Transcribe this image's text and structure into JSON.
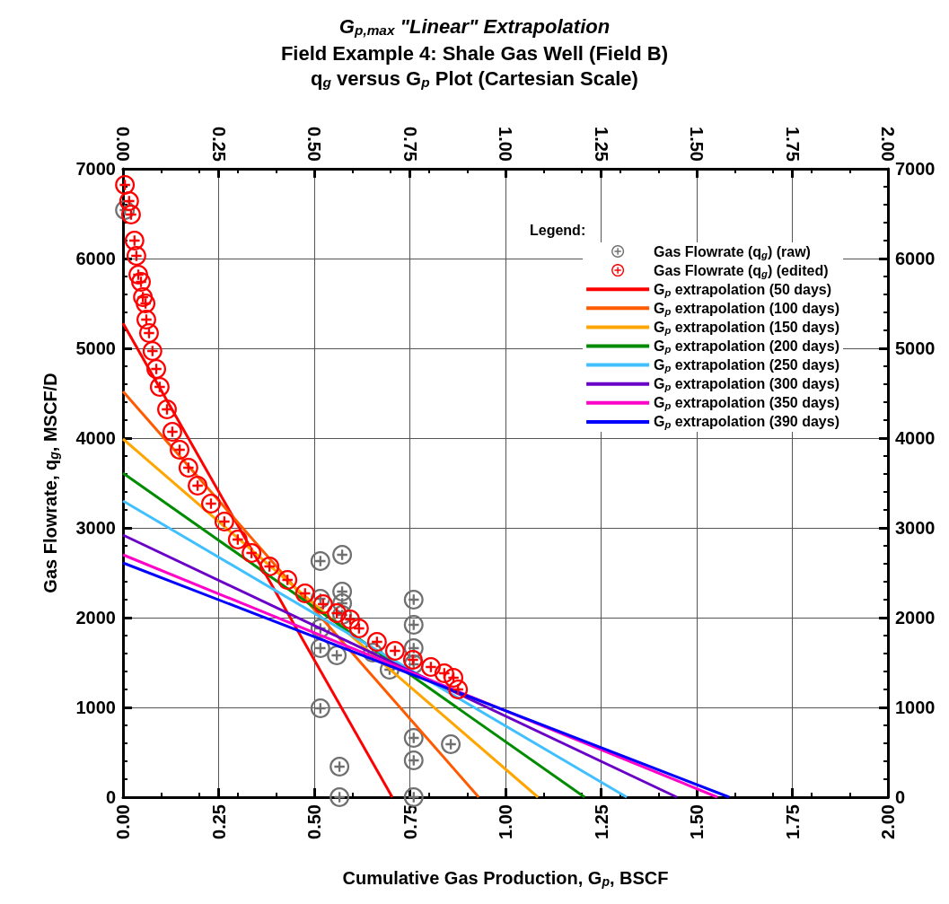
{
  "chart_data": {
    "type": "scatter",
    "title": "G$_{p,max}$ \"Linear\" Extrapolation",
    "subtitle": "Field Example 4: Shale Gas Well (Field B)\nq$_{g}$ versus G$_{p}$ Plot (Cartesian Scale)",
    "xlabel": "Cumulative Gas Production, G$_{p}$, BSCF",
    "ylabel": "Gas Flowrate, q$_{g}$, MSCF/D",
    "legend_title": "Legend:",
    "legend": "top right",
    "grid": true,
    "marker": "circle",
    "xlim": [
      0,
      2
    ],
    "xticks": [
      {
        "value": 0,
        "label": "0.00"
      },
      {
        "value": 0.25,
        "label": "0.25"
      },
      {
        "value": 0.5,
        "label": "0.50"
      },
      {
        "value": 0.75,
        "label": "0.75"
      },
      {
        "value": 1,
        "label": "1.00"
      },
      {
        "value": 1.25,
        "label": "1.25"
      },
      {
        "value": 1.5,
        "label": "1.50"
      },
      {
        "value": 1.75,
        "label": "1.75"
      },
      {
        "value": 2,
        "label": "2.00"
      }
    ],
    "x2lim": [
      0,
      2
    ],
    "x2ticks": [
      {
        "value": 0,
        "label": "0.00"
      },
      {
        "value": 0.25,
        "label": "0.25"
      },
      {
        "value": 0.5,
        "label": "0.50"
      },
      {
        "value": 0.75,
        "label": "0.75"
      },
      {
        "value": 1,
        "label": "1.00"
      },
      {
        "value": 1.25,
        "label": "1.25"
      },
      {
        "value": 1.5,
        "label": "1.50"
      },
      {
        "value": 1.75,
        "label": "1.75"
      },
      {
        "value": 2,
        "label": "2.00"
      }
    ],
    "ylim": [
      0,
      7000
    ],
    "yticks": [
      0,
      1000,
      2000,
      3000,
      4000,
      5000,
      6000,
      7000
    ],
    "y2lim": [
      0,
      7000
    ],
    "y2ticks": [
      0,
      1000,
      2000,
      3000,
      4000,
      5000,
      6000,
      7000
    ],
    "series": [
      {
        "name": "Gas Flowrate (q$_{g}$) (raw)",
        "color": "#707070",
        "x": [
          0.005,
          0.516,
          0.573,
          0.516,
          0.573,
          0.573,
          0.573,
          0.516,
          0.516,
          0.559,
          0.516,
          0.566,
          0.566,
          0.76,
          0.76,
          0.76,
          0.76,
          0.697,
          0.76,
          0.76,
          0.76,
          0.857,
          0.653
        ],
        "values": [
          6540,
          2630,
          2700,
          2210,
          2290,
          2160,
          2030,
          1880,
          1660,
          1580,
          990,
          340,
          0,
          2200,
          1920,
          1660,
          1480,
          1420,
          660,
          410,
          0,
          590,
          1610
        ]
      },
      {
        "name": "Gas Flowrate (q$_{g}$) (edited)",
        "color": "#ff0000",
        "x": [
          0.005,
          0.016,
          0.021,
          0.03,
          0.035,
          0.04,
          0.047,
          0.052,
          0.059,
          0.061,
          0.068,
          0.077,
          0.087,
          0.096,
          0.115,
          0.129,
          0.148,
          0.171,
          0.195,
          0.23,
          0.265,
          0.3,
          0.336,
          0.383,
          0.43,
          0.476,
          0.523,
          0.559,
          0.594,
          0.617,
          0.664,
          0.711,
          0.758,
          0.805,
          0.84,
          0.864,
          0.876
        ],
        "values": [
          6820,
          6640,
          6490,
          6200,
          6030,
          5820,
          5740,
          5570,
          5500,
          5320,
          5170,
          4970,
          4770,
          4570,
          4320,
          4070,
          3870,
          3670,
          3470,
          3270,
          3070,
          2870,
          2720,
          2570,
          2420,
          2270,
          2150,
          2050,
          1980,
          1880,
          1730,
          1630,
          1530,
          1450,
          1380,
          1330,
          1200
        ]
      },
      {
        "name": "G$_{p}$ extrapolation (50 days)",
        "type": "line",
        "marker": "none",
        "color": "#ff0000",
        "x": [
          0,
          0.704
        ],
        "values": [
          5280,
          0
        ]
      },
      {
        "name": "G$_{p}$ extrapolation (100 days)",
        "type": "line",
        "marker": "none",
        "color": "#ff5a00",
        "x": [
          0,
          0.93
        ],
        "values": [
          4520,
          0
        ]
      },
      {
        "name": "G$_{p}$ extrapolation (150 days)",
        "type": "line",
        "marker": "none",
        "color": "#ffa500",
        "x": [
          0,
          1.085
        ],
        "values": [
          3990,
          0
        ]
      },
      {
        "name": "G$_{p}$ extrapolation (200 days)",
        "type": "line",
        "marker": "none",
        "color": "#008c00",
        "x": [
          0,
          1.207
        ],
        "values": [
          3610,
          0
        ]
      },
      {
        "name": "G$_{p}$ extrapolation (250 days)",
        "type": "line",
        "marker": "none",
        "color": "#40c0ff",
        "x": [
          0,
          1.317
        ],
        "values": [
          3300,
          0
        ]
      },
      {
        "name": "G$_{p}$ extrapolation (300 days)",
        "type": "line",
        "marker": "none",
        "color": "#6a00c8",
        "x": [
          0,
          1.448
        ],
        "values": [
          2920,
          0
        ]
      },
      {
        "name": "G$_{p}$ extrapolation (350 days)",
        "type": "line",
        "marker": "none",
        "color": "#ff00c8",
        "x": [
          0,
          1.554
        ],
        "values": [
          2700,
          0
        ]
      },
      {
        "name": "G$_{p}$ extrapolation (390 days)",
        "type": "line",
        "marker": "none",
        "color": "#0000ff",
        "x": [
          0,
          1.585
        ],
        "values": [
          2610,
          0
        ]
      }
    ]
  }
}
